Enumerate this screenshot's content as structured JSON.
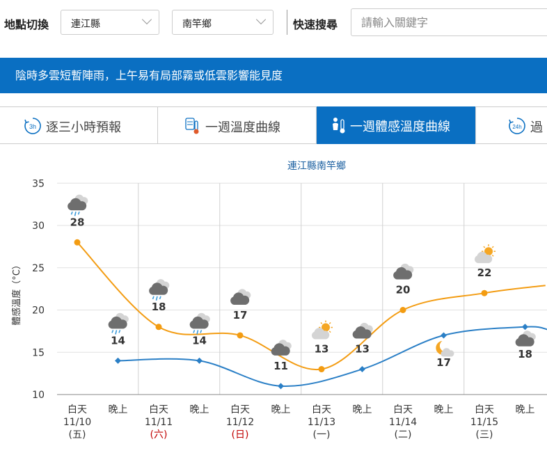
{
  "location": {
    "label": "地點切換",
    "county": "連江縣",
    "township": "南竿鄉"
  },
  "search": {
    "label": "快速搜尋",
    "placeholder": "請輸入關鍵字"
  },
  "banner": {
    "text": "陰時多雲短暫陣雨，上午易有局部霧或低雲影響能見度"
  },
  "tabs": [
    {
      "label": "逐三小時預報",
      "icon": "3h-clock-icon",
      "active": false
    },
    {
      "label": "一週溫度曲線",
      "icon": "thermometer-icon",
      "active": false
    },
    {
      "label": "一週體感溫度曲線",
      "icon": "feels-like-thermometer-icon",
      "active": true
    },
    {
      "label": "過",
      "icon": "24h-clock-icon",
      "active": false
    }
  ],
  "colors": {
    "accent": "#0a6fc2",
    "day_line": "#f39c12",
    "night_line": "#2a7fc6",
    "weekend": "#c00000"
  },
  "chart_data": {
    "type": "line",
    "title": "連江縣南竿鄉",
    "ylabel": "體感溫度（°C）",
    "ylim": [
      10,
      35
    ],
    "yticks": [
      10,
      15,
      20,
      25,
      30,
      35
    ],
    "grid": true,
    "categories": [
      {
        "period": "白天",
        "date": "11/10",
        "weekday": "(五)",
        "weekend": false
      },
      {
        "period": "晚上",
        "date": "",
        "weekday": "",
        "weekend": false
      },
      {
        "period": "白天",
        "date": "11/11",
        "weekday": "(六)",
        "weekend": true
      },
      {
        "period": "晚上",
        "date": "",
        "weekday": "",
        "weekend": false
      },
      {
        "period": "白天",
        "date": "11/12",
        "weekday": "(日)",
        "weekend": true
      },
      {
        "period": "晚上",
        "date": "",
        "weekday": "",
        "weekend": false
      },
      {
        "period": "白天",
        "date": "11/13",
        "weekday": "(一)",
        "weekend": false
      },
      {
        "period": "晚上",
        "date": "",
        "weekday": "",
        "weekend": false
      },
      {
        "period": "白天",
        "date": "11/14",
        "weekday": "(二)",
        "weekend": false
      },
      {
        "period": "晚上",
        "date": "",
        "weekday": "",
        "weekend": false
      },
      {
        "period": "白天",
        "date": "11/15",
        "weekday": "(三)",
        "weekend": false
      },
      {
        "period": "晚上",
        "date": "",
        "weekday": "",
        "weekend": false
      }
    ],
    "series": [
      {
        "key": "day",
        "points": [
          [
            0,
            28
          ],
          [
            2,
            18
          ],
          [
            4,
            17
          ],
          [
            6,
            13
          ],
          [
            8,
            20
          ],
          [
            10,
            22
          ]
        ]
      },
      {
        "key": "night",
        "points": [
          [
            1,
            14
          ],
          [
            3,
            14
          ],
          [
            5,
            11
          ],
          [
            7,
            13
          ],
          [
            9,
            17
          ],
          [
            11,
            18
          ]
        ]
      }
    ],
    "point_labels": [
      {
        "index": 0,
        "value": "28",
        "icon": "cloudy-rain-icon"
      },
      {
        "index": 1,
        "value": "14",
        "icon": "cloudy-rain-icon"
      },
      {
        "index": 2,
        "value": "18",
        "icon": "cloudy-rain-icon"
      },
      {
        "index": 3,
        "value": "14",
        "icon": "cloudy-rain-icon"
      },
      {
        "index": 4,
        "value": "17",
        "icon": "cloudy-icon"
      },
      {
        "index": 5,
        "value": "11",
        "icon": "cloudy-icon"
      },
      {
        "index": 6,
        "value": "13",
        "icon": "partly-sunny-icon"
      },
      {
        "index": 7,
        "value": "13",
        "icon": "cloudy-icon"
      },
      {
        "index": 8,
        "value": "20",
        "icon": "cloudy-icon"
      },
      {
        "index": 9,
        "value": "17",
        "icon": "moon-cloud-icon"
      },
      {
        "index": 10,
        "value": "22",
        "icon": "partly-sunny-icon"
      },
      {
        "index": 11,
        "value": "18",
        "icon": "cloudy-icon"
      }
    ]
  }
}
